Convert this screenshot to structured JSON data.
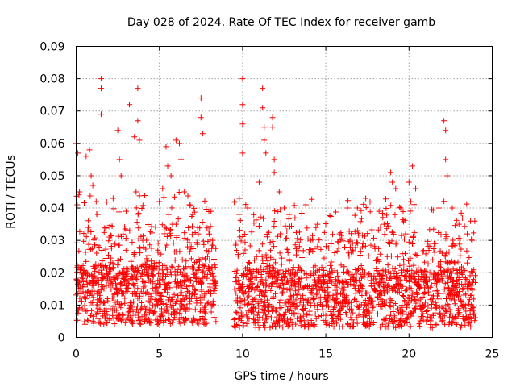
{
  "chart_data": {
    "type": "scatter",
    "title": "Day 028 of 2024, Rate Of TEC Index for receiver gamb",
    "xlabel": "GPS time / hours",
    "ylabel": "ROTI / TECUs",
    "xlim": [
      0,
      25
    ],
    "ylim": [
      0,
      0.09
    ],
    "x_ticks": [
      "0",
      "5",
      "10",
      "15",
      "20",
      "25"
    ],
    "y_ticks": [
      "0",
      "0.01",
      "0.02",
      "0.03",
      "0.04",
      "0.05",
      "0.06",
      "0.07",
      "0.08",
      "0.09"
    ],
    "grid": true,
    "marker": "+",
    "color": "#ff0000",
    "series": [
      {
        "name": "ROTI",
        "segments": [
          {
            "start": 0.0,
            "end": 8.4,
            "min": 0.004,
            "typical": 0.016,
            "busy_max": 0.035
          },
          {
            "start": 9.5,
            "end": 24.0,
            "min": 0.003,
            "typical": 0.015,
            "busy_max": 0.033
          }
        ],
        "points": [
          {
            "x": 0.0,
            "y": 0.06
          },
          {
            "x": 0.1,
            "y": 0.057
          },
          {
            "x": 0.2,
            "y": 0.045
          },
          {
            "x": 0.6,
            "y": 0.056
          },
          {
            "x": 0.8,
            "y": 0.058
          },
          {
            "x": 0.9,
            "y": 0.05
          },
          {
            "x": 1.0,
            "y": 0.047
          },
          {
            "x": 1.2,
            "y": 0.042
          },
          {
            "x": 1.3,
            "y": 0.038
          },
          {
            "x": 1.5,
            "y": 0.08
          },
          {
            "x": 1.5,
            "y": 0.077
          },
          {
            "x": 1.5,
            "y": 0.069
          },
          {
            "x": 1.8,
            "y": 0.034
          },
          {
            "x": 2.0,
            "y": 0.031
          },
          {
            "x": 2.5,
            "y": 0.064
          },
          {
            "x": 2.6,
            "y": 0.055
          },
          {
            "x": 2.7,
            "y": 0.05
          },
          {
            "x": 3.0,
            "y": 0.039
          },
          {
            "x": 3.2,
            "y": 0.072
          },
          {
            "x": 3.5,
            "y": 0.062
          },
          {
            "x": 3.7,
            "y": 0.077
          },
          {
            "x": 3.7,
            "y": 0.067
          },
          {
            "x": 3.8,
            "y": 0.061
          },
          {
            "x": 3.6,
            "y": 0.045
          },
          {
            "x": 4.0,
            "y": 0.03
          },
          {
            "x": 5.0,
            "y": 0.042
          },
          {
            "x": 5.2,
            "y": 0.046
          },
          {
            "x": 5.4,
            "y": 0.059
          },
          {
            "x": 5.5,
            "y": 0.053
          },
          {
            "x": 5.7,
            "y": 0.05
          },
          {
            "x": 6.0,
            "y": 0.061
          },
          {
            "x": 6.2,
            "y": 0.06
          },
          {
            "x": 6.3,
            "y": 0.055
          },
          {
            "x": 6.5,
            "y": 0.045
          },
          {
            "x": 6.8,
            "y": 0.041
          },
          {
            "x": 7.0,
            "y": 0.038
          },
          {
            "x": 7.3,
            "y": 0.034
          },
          {
            "x": 7.5,
            "y": 0.074
          },
          {
            "x": 7.5,
            "y": 0.068
          },
          {
            "x": 7.6,
            "y": 0.063
          },
          {
            "x": 8.1,
            "y": 0.039
          },
          {
            "x": 8.2,
            "y": 0.03
          },
          {
            "x": 9.8,
            "y": 0.043
          },
          {
            "x": 10.0,
            "y": 0.08
          },
          {
            "x": 10.0,
            "y": 0.072
          },
          {
            "x": 10.0,
            "y": 0.066
          },
          {
            "x": 10.0,
            "y": 0.057
          },
          {
            "x": 10.3,
            "y": 0.04
          },
          {
            "x": 11.0,
            "y": 0.048
          },
          {
            "x": 11.2,
            "y": 0.077
          },
          {
            "x": 11.2,
            "y": 0.071
          },
          {
            "x": 11.3,
            "y": 0.065
          },
          {
            "x": 11.3,
            "y": 0.061
          },
          {
            "x": 11.4,
            "y": 0.057
          },
          {
            "x": 11.8,
            "y": 0.068
          },
          {
            "x": 11.8,
            "y": 0.065
          },
          {
            "x": 11.9,
            "y": 0.055
          },
          {
            "x": 11.9,
            "y": 0.051
          },
          {
            "x": 12.2,
            "y": 0.045
          },
          {
            "x": 12.5,
            "y": 0.04
          },
          {
            "x": 12.8,
            "y": 0.038
          },
          {
            "x": 13.8,
            "y": 0.041
          },
          {
            "x": 14.5,
            "y": 0.035
          },
          {
            "x": 16.3,
            "y": 0.04
          },
          {
            "x": 16.9,
            "y": 0.04
          },
          {
            "x": 17.4,
            "y": 0.043
          },
          {
            "x": 18.2,
            "y": 0.039
          },
          {
            "x": 18.5,
            "y": 0.035
          },
          {
            "x": 18.9,
            "y": 0.051
          },
          {
            "x": 19.0,
            "y": 0.048
          },
          {
            "x": 19.2,
            "y": 0.046
          },
          {
            "x": 19.5,
            "y": 0.04
          },
          {
            "x": 20.0,
            "y": 0.048
          },
          {
            "x": 20.2,
            "y": 0.053
          },
          {
            "x": 20.4,
            "y": 0.046
          },
          {
            "x": 21.8,
            "y": 0.04
          },
          {
            "x": 22.1,
            "y": 0.067
          },
          {
            "x": 22.2,
            "y": 0.064
          },
          {
            "x": 22.2,
            "y": 0.055
          },
          {
            "x": 22.3,
            "y": 0.05
          },
          {
            "x": 22.6,
            "y": 0.04
          },
          {
            "x": 23.0,
            "y": 0.035
          },
          {
            "x": 23.5,
            "y": 0.032
          },
          {
            "x": 23.8,
            "y": 0.03
          }
        ]
      }
    ]
  }
}
